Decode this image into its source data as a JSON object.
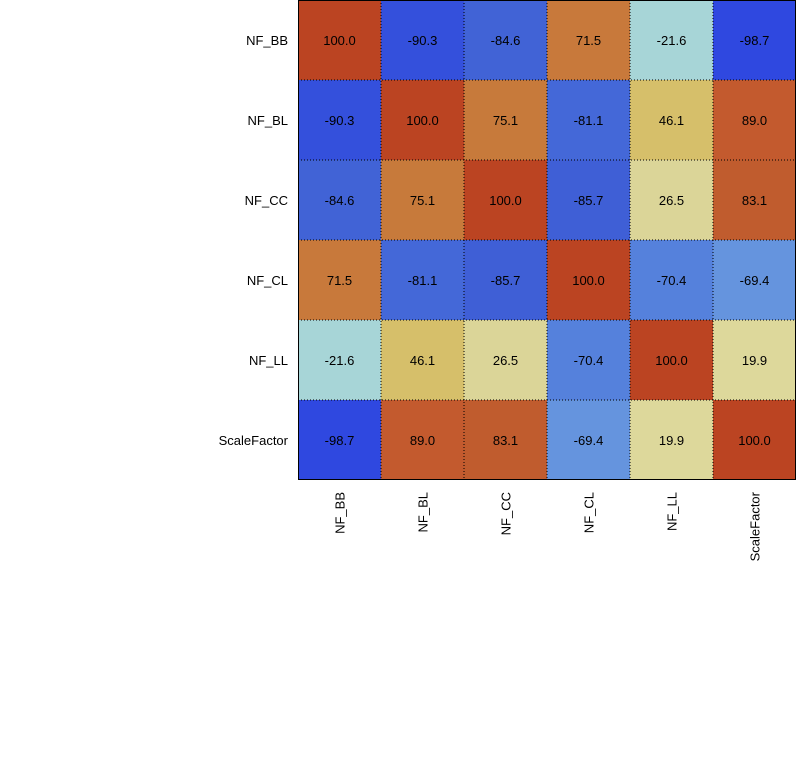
{
  "chart_data": {
    "type": "heatmap",
    "title": "",
    "xlabel": "",
    "ylabel": "",
    "row_labels": [
      "NF_BB",
      "NF_BL",
      "NF_CC",
      "NF_CL",
      "NF_LL",
      "ScaleFactor"
    ],
    "col_labels": [
      "NF_BB",
      "NF_BL",
      "NF_CC",
      "NF_CL",
      "NF_LL",
      "ScaleFactor"
    ],
    "values": [
      [
        100.0,
        -90.3,
        -84.6,
        71.5,
        -21.6,
        -98.7
      ],
      [
        -90.3,
        100.0,
        75.1,
        -81.1,
        46.1,
        89.0
      ],
      [
        -84.6,
        75.1,
        100.0,
        -85.7,
        26.5,
        83.1
      ],
      [
        71.5,
        -81.1,
        -85.7,
        100.0,
        -70.4,
        -69.4
      ],
      [
        -21.6,
        46.1,
        26.5,
        -70.4,
        100.0,
        19.9
      ],
      [
        -98.7,
        89.0,
        83.1,
        -69.4,
        19.9,
        100.0
      ]
    ],
    "value_labels": [
      [
        "100.0",
        "-90.3",
        "-84.6",
        "71.5",
        "-21.6",
        "-98.7"
      ],
      [
        "-90.3",
        "100.0",
        "75.1",
        "-81.1",
        "46.1",
        "89.0"
      ],
      [
        "-84.6",
        "75.1",
        "100.0",
        "-85.7",
        "26.5",
        "83.1"
      ],
      [
        "71.5",
        "-81.1",
        "-85.7",
        "100.0",
        "-70.4",
        "-69.4"
      ],
      [
        "-21.6",
        "46.1",
        "26.5",
        "-70.4",
        "100.0",
        "19.9"
      ],
      [
        "-98.7",
        "89.0",
        "83.1",
        "-69.4",
        "19.9",
        "100.0"
      ]
    ],
    "value_range": [
      -100,
      100
    ],
    "grid": true,
    "legend": "none",
    "colors": {
      "100.0": "#bb4422",
      "-98.7": "#2f48e0",
      "-90.3": "#3450dc",
      "-85.7": "#3f5fd6",
      "-84.6": "#4163d6",
      "-81.1": "#4468d8",
      "-70.4": "#5581dc",
      "-69.4": "#6594de",
      "-21.6": "#a7d5d7",
      "19.9": "#ddd89b",
      "26.5": "#dbd598",
      "46.1": "#d6bf6a",
      "71.5": "#c8793b",
      "75.1": "#c77a3b",
      "83.1": "#c05c2e",
      "89.0": "#c35a2e"
    }
  }
}
